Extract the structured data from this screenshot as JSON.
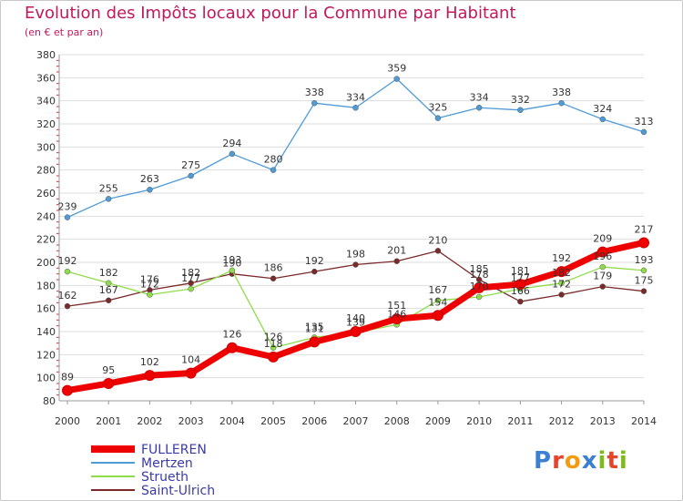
{
  "header": {
    "title": "Evolution des Impôts locaux pour la Commune par Habitant",
    "subtitle": "(en € et par an)"
  },
  "brand": {
    "letters": [
      "P",
      "r",
      "o",
      "x",
      "i",
      "t",
      "i"
    ],
    "colors": [
      "#3d7fd1",
      "#e4452b",
      "#f29b13",
      "#3d7fd1",
      "#7fba1b",
      "#e4452b",
      "#7fba1b"
    ]
  },
  "chart_data": {
    "type": "line",
    "title": "Evolution des Impôts locaux pour la Commune par Habitant",
    "subtitle": "(en € et par an)",
    "xlabel": "",
    "ylabel": "",
    "x": [
      "2000",
      "2001",
      "2002",
      "2003",
      "2004",
      "2005",
      "2006",
      "2007",
      "2008",
      "2009",
      "2010",
      "2011",
      "2012",
      "2013",
      "2014"
    ],
    "ylim": [
      80,
      380
    ],
    "yticks": [
      80,
      100,
      120,
      140,
      160,
      180,
      200,
      220,
      240,
      260,
      280,
      300,
      320,
      340,
      360,
      380
    ],
    "grid": "horizontal",
    "legend_position": "bottom-left",
    "series": [
      {
        "name": "FULLEREN",
        "color": "#ee0000",
        "values": [
          89,
          95,
          102,
          104,
          126,
          118,
          131,
          140,
          151,
          154,
          178,
          181,
          192,
          209,
          217
        ],
        "labels": [
          "89",
          "95",
          "102",
          "104",
          "126",
          "118",
          "131",
          "140",
          "151",
          "154",
          "178",
          "181",
          "192",
          "209",
          "217"
        ]
      },
      {
        "name": "Mertzen",
        "color": "#4f9bd6",
        "values": [
          239,
          255,
          263,
          275,
          294,
          280,
          338,
          334,
          359,
          325,
          334,
          332,
          338,
          324,
          313
        ],
        "labels": [
          "239",
          "255",
          "263",
          "275",
          "294",
          "280",
          "338",
          "334",
          "359",
          "325",
          "334",
          "332",
          "338",
          "324",
          "313"
        ]
      },
      {
        "name": "Strueth",
        "color": "#8fdc4a",
        "values": [
          192,
          182,
          172,
          177,
          193,
          126,
          135,
          139,
          146,
          167,
          170,
          177,
          182,
          196,
          193
        ],
        "labels": [
          "192",
          "182",
          "172",
          "177",
          "193",
          "126",
          "135",
          "139",
          "146",
          "167",
          "170",
          "177",
          "182",
          "196",
          "193"
        ]
      },
      {
        "name": "Saint-Ulrich",
        "color": "#7b2a2a",
        "values": [
          162,
          167,
          176,
          182,
          190,
          186,
          192,
          198,
          201,
          210,
          185,
          166,
          172,
          179,
          175
        ],
        "labels": [
          "162",
          "167",
          "176",
          "182",
          "190",
          "186",
          "192",
          "198",
          "201",
          "210",
          "185",
          "166",
          "172",
          "179",
          "175"
        ]
      }
    ]
  }
}
